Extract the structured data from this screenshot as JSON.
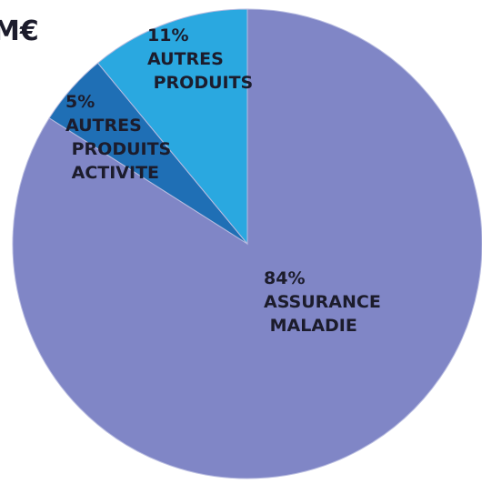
{
  "chart_data": {
    "type": "pie",
    "title": "M€",
    "categories": [
      "ASSURANCE MALADIE",
      "AUTRES PRODUITS ACTIVITE",
      "AUTRES PRODUITS"
    ],
    "values": [
      84,
      5,
      11
    ],
    "value_labels": [
      "84%",
      "5%",
      "11%"
    ],
    "colors": [
      "#8086c6",
      "#1f6fb5",
      "#2aa8e0"
    ]
  }
}
